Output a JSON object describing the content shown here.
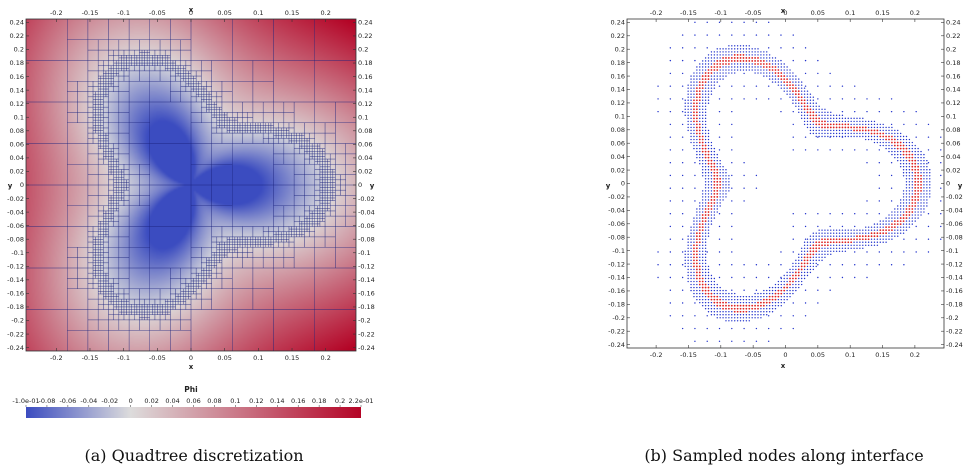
{
  "panel_a": {
    "caption": "(a) Quadtree discretization",
    "x_axis_label": "x",
    "y_axis_label": "y",
    "x_ticks": [
      "-0.2",
      "-0.15",
      "-0.1",
      "-0.05",
      "0",
      "0.05",
      "0.1",
      "0.15",
      "0.2"
    ],
    "y_ticks": [
      "0.24",
      "0.22",
      "0.2",
      "0.18",
      "0.16",
      "0.14",
      "0.12",
      "0.1",
      "0.08",
      "0.06",
      "0.04",
      "0.02",
      "0",
      "-0.02",
      "-0.04",
      "-0.06",
      "-0.08",
      "-0.1",
      "-0.12",
      "-0.14",
      "-0.16",
      "-0.18",
      "-0.2",
      "-0.22",
      "-0.24"
    ],
    "colorbar": {
      "title": "Phi",
      "ticks": [
        "-1.0e-01",
        "-0.08",
        "-0.06",
        "-0.04",
        "-0.02",
        "0",
        "0.02",
        "0.04",
        "0.06",
        "0.08",
        "0.1",
        "0.12",
        "0.14",
        "0.16",
        "0.18",
        "0.2",
        "2.2e-01"
      ],
      "range": [
        -0.1,
        0.22
      ],
      "colors": [
        "#3b4cc0",
        "#dddcdc",
        "#b40426"
      ]
    },
    "mesh_color": "#1a237e"
  },
  "panel_b": {
    "caption": "(b) Sampled nodes along interface",
    "x_axis_label": "x",
    "y_axis_label": "y",
    "x_ticks": [
      "-0.2",
      "-0.15",
      "-0.1",
      "-0.05",
      "0",
      "0.05",
      "0.1",
      "0.15",
      "0.2"
    ],
    "y_ticks": [
      "0.24",
      "0.22",
      "0.2",
      "0.18",
      "0.16",
      "0.14",
      "0.12",
      "0.1",
      "0.08",
      "0.06",
      "0.04",
      "0.02",
      "0",
      "-0.02",
      "-0.04",
      "-0.06",
      "-0.08",
      "-0.1",
      "-0.12",
      "-0.14",
      "-0.16",
      "-0.18",
      "-0.2",
      "-0.22",
      "-0.24"
    ],
    "node_color_outer": "#2233cc",
    "node_color_interface": "#dd2222"
  }
}
